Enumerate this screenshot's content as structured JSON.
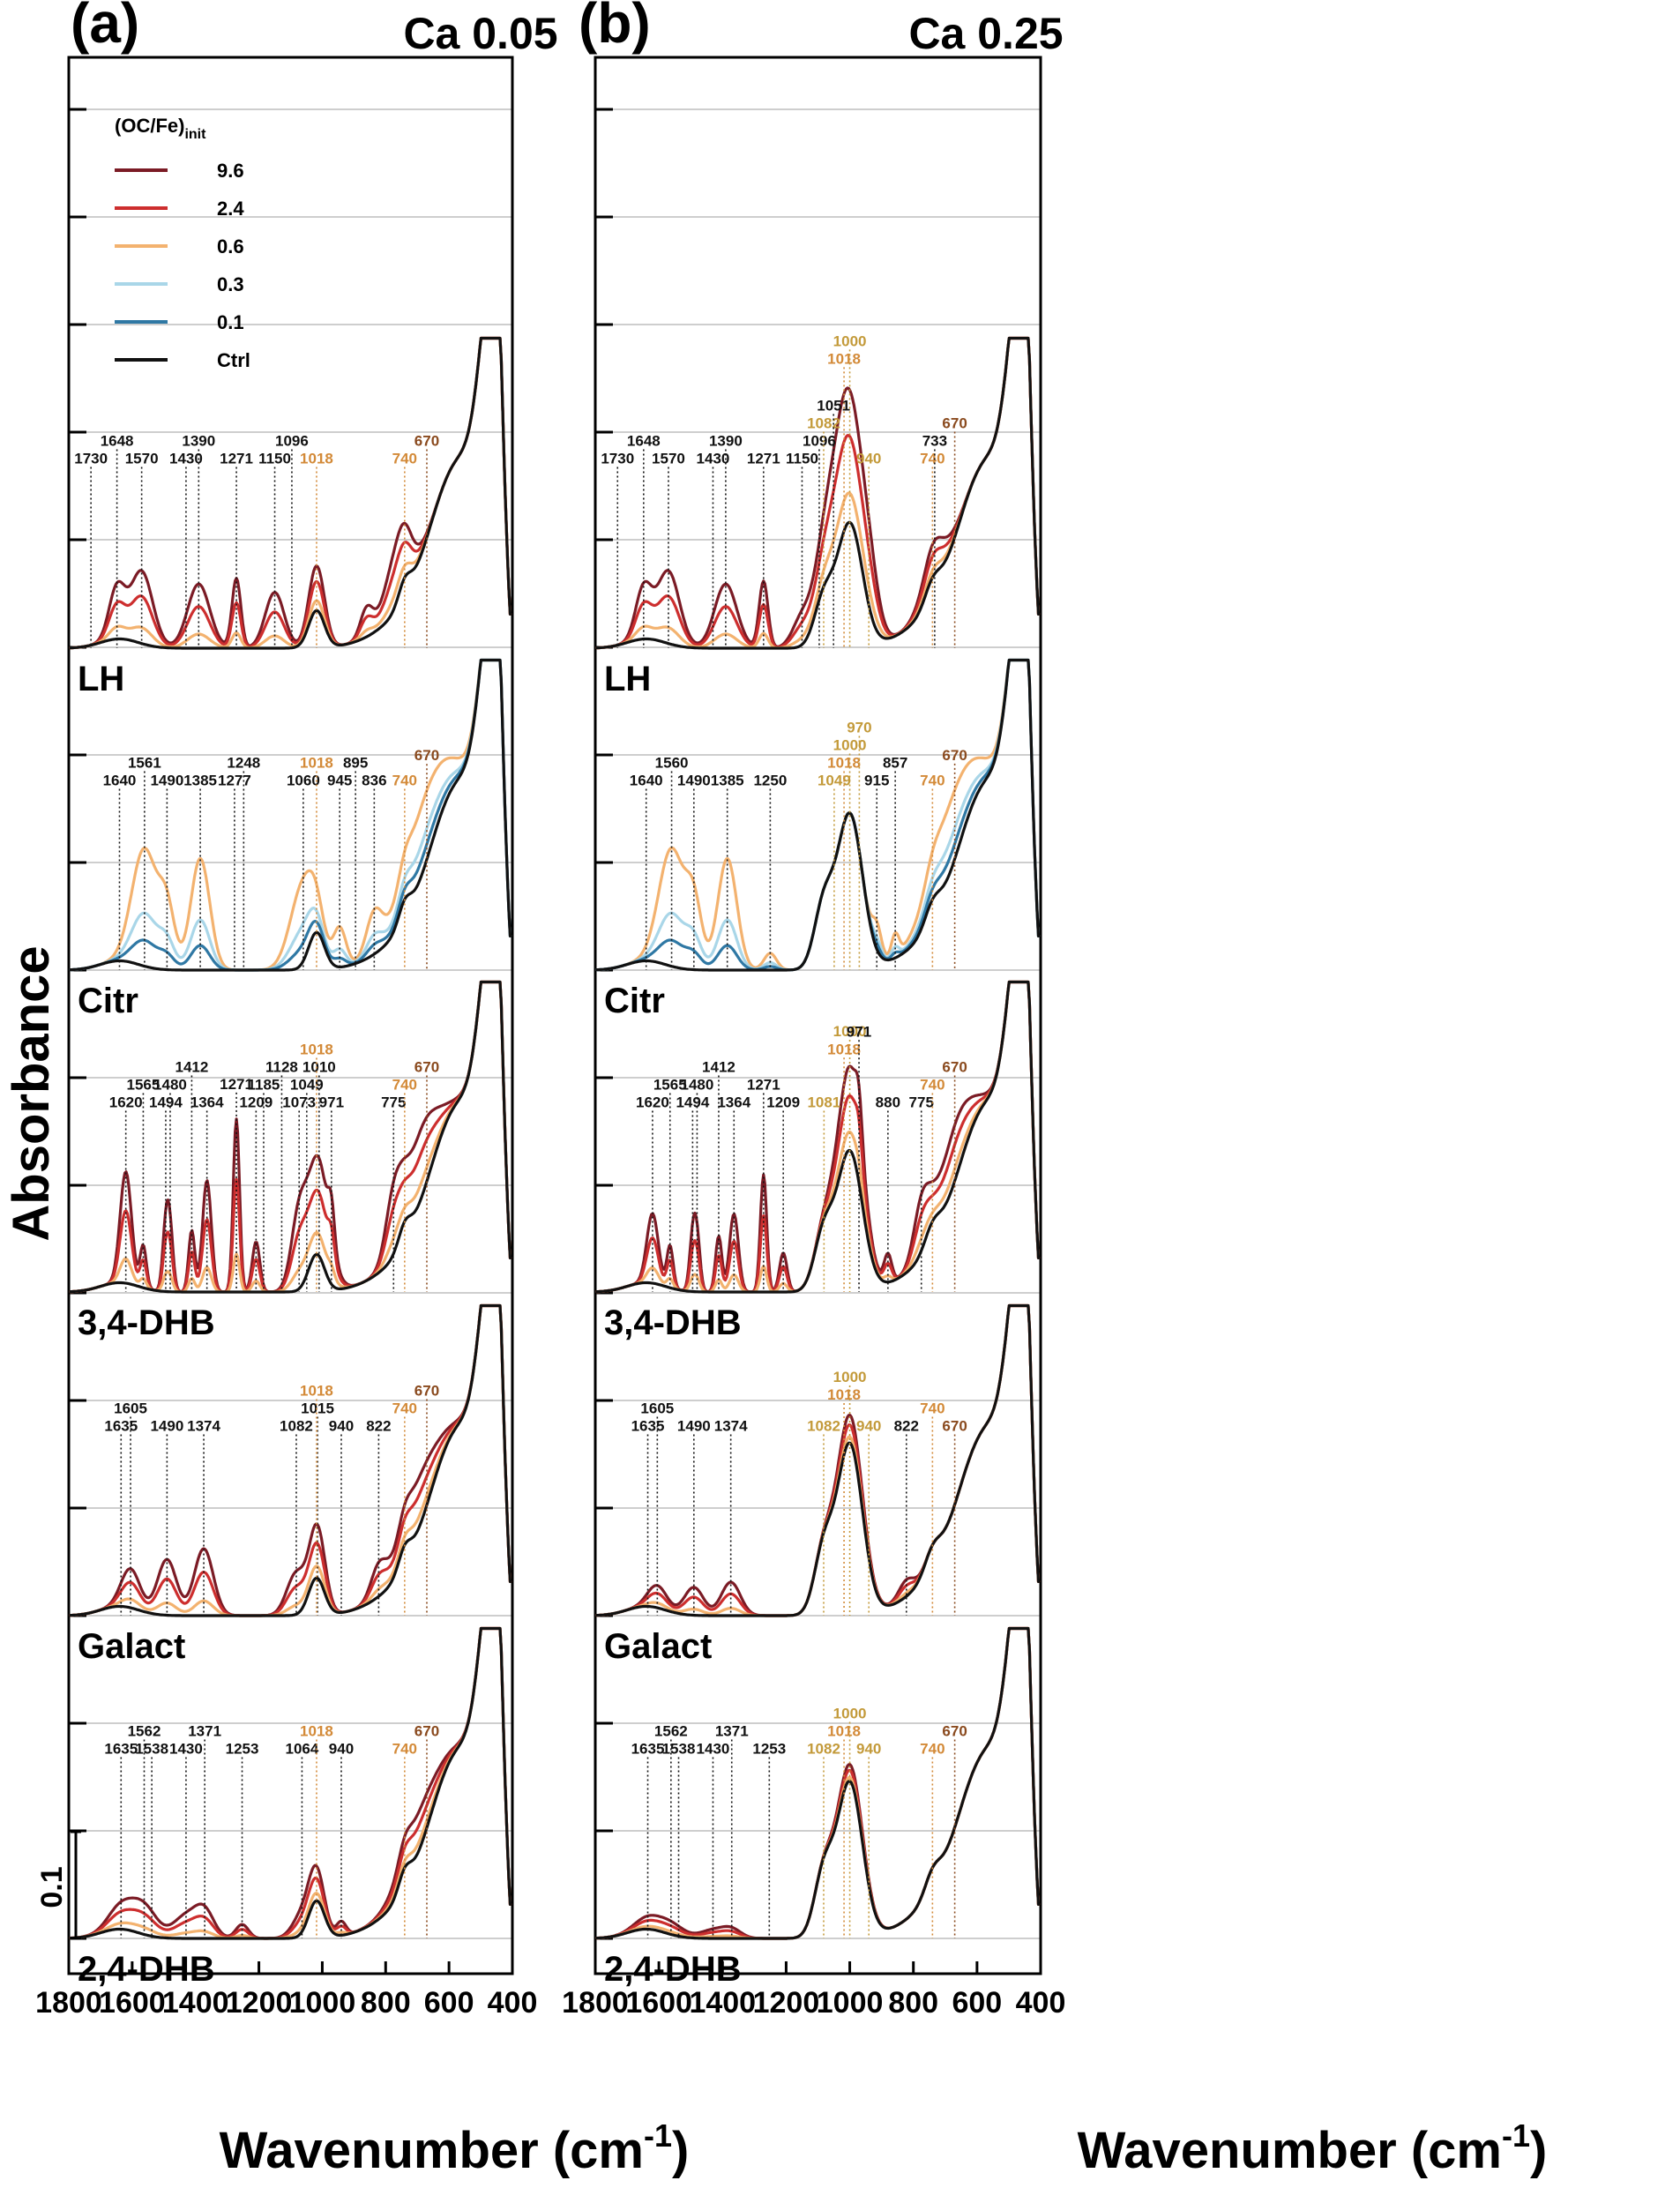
{
  "figure": {
    "y_axis_title": "Absorbance",
    "x_axis_label": "Wavenumber (cm",
    "x_axis_superscript": "-1",
    "x_axis_close": ")",
    "scale_bar_label": "0.1"
  },
  "colors": {
    "9.6": "#7b1b25",
    "2.4": "#cd2e2e",
    "0.6": "#f3b26f",
    "0.3": "#a9d6e8",
    "0.1": "#2f78a4",
    "Ctrl": "#111111",
    "peak_black": "#111111",
    "peak_orange": "#d38a38",
    "peak_gold": "#c39a3a",
    "peak_brown": "#8a4a1e"
  },
  "legend": {
    "title_main": "(OC/Fe)",
    "title_sub": "init",
    "entries": [
      {
        "label": "9.6",
        "key": "9.6"
      },
      {
        "label": "2.4",
        "key": "2.4"
      },
      {
        "label": "0.6",
        "key": "0.6"
      },
      {
        "label": "0.3",
        "key": "0.3"
      },
      {
        "label": "0.1",
        "key": "0.1"
      },
      {
        "label": "Ctrl",
        "key": "Ctrl"
      }
    ]
  },
  "chart_data": [
    {
      "type": "line",
      "panel_letter": "(a)",
      "title": "Ca 0.05",
      "xlabel": "Wavenumber (cm-1)",
      "ylabel": "Absorbance",
      "xlim": [
        1800,
        400
      ],
      "x_reversed": true,
      "x_ticks": [
        1800,
        1600,
        1400,
        1200,
        1000,
        800,
        600,
        400
      ],
      "offset_stacked": true,
      "grid": "horizontal",
      "samples": [
        {
          "name": "LH",
          "series": [
            "9.6",
            "2.4",
            "0.6",
            "Ctrl"
          ],
          "peaks": [
            {
              "x": 1730,
              "label": "1730",
              "c": "black"
            },
            {
              "x": 1648,
              "label": "1648",
              "c": "black"
            },
            {
              "x": 1570,
              "label": "1570",
              "c": "black"
            },
            {
              "x": 1430,
              "label": "1430",
              "c": "black"
            },
            {
              "x": 1390,
              "label": "1390",
              "c": "black"
            },
            {
              "x": 1271,
              "label": "1271",
              "c": "black"
            },
            {
              "x": 1150,
              "label": "1150",
              "c": "black"
            },
            {
              "x": 1096,
              "label": "1096",
              "c": "black"
            },
            {
              "x": 1018,
              "label": "1018",
              "c": "orange"
            },
            {
              "x": 740,
              "label": "740",
              "c": "orange"
            },
            {
              "x": 670,
              "label": "670",
              "c": "brown"
            }
          ]
        },
        {
          "name": "Citr",
          "series": [
            "0.6",
            "0.3",
            "0.1",
            "Ctrl"
          ],
          "peaks": [
            {
              "x": 1640,
              "label": "1640",
              "c": "black"
            },
            {
              "x": 1561,
              "label": "1561",
              "c": "black"
            },
            {
              "x": 1490,
              "label": "1490",
              "c": "black"
            },
            {
              "x": 1385,
              "label": "1385",
              "c": "black"
            },
            {
              "x": 1277,
              "label": "1277",
              "c": "black"
            },
            {
              "x": 1248,
              "label": "1248",
              "c": "black"
            },
            {
              "x": 1060,
              "label": "1060",
              "c": "black"
            },
            {
              "x": 1018,
              "label": "1018",
              "c": "orange"
            },
            {
              "x": 945,
              "label": "945",
              "c": "black"
            },
            {
              "x": 895,
              "label": "895",
              "c": "black"
            },
            {
              "x": 836,
              "label": "836",
              "c": "black"
            },
            {
              "x": 740,
              "label": "740",
              "c": "orange"
            },
            {
              "x": 670,
              "label": "670",
              "c": "brown"
            }
          ]
        },
        {
          "name": "3,4-DHB",
          "series": [
            "9.6",
            "2.4",
            "0.6",
            "Ctrl"
          ],
          "peaks": [
            {
              "x": 1620,
              "label": "1620",
              "c": "black"
            },
            {
              "x": 1565,
              "label": "1565",
              "c": "black"
            },
            {
              "x": 1494,
              "label": "1494",
              "c": "black"
            },
            {
              "x": 1480,
              "label": "1480",
              "c": "black"
            },
            {
              "x": 1412,
              "label": "1412",
              "c": "black"
            },
            {
              "x": 1364,
              "label": "1364",
              "c": "black"
            },
            {
              "x": 1271,
              "label": "1271",
              "c": "black"
            },
            {
              "x": 1209,
              "label": "1209",
              "c": "black"
            },
            {
              "x": 1185,
              "label": "1185",
              "c": "black"
            },
            {
              "x": 1128,
              "label": "1128",
              "c": "black"
            },
            {
              "x": 1073,
              "label": "1073",
              "c": "black"
            },
            {
              "x": 1049,
              "label": "1049",
              "c": "black"
            },
            {
              "x": 1010,
              "label": "1010",
              "c": "black"
            },
            {
              "x": 1018,
              "label": "1018",
              "c": "orange"
            },
            {
              "x": 971,
              "label": "971",
              "c": "black"
            },
            {
              "x": 775,
              "label": "775",
              "c": "black"
            },
            {
              "x": 740,
              "label": "740",
              "c": "orange"
            },
            {
              "x": 670,
              "label": "670",
              "c": "brown"
            }
          ]
        },
        {
          "name": "Galact",
          "series": [
            "9.6",
            "2.4",
            "0.6",
            "Ctrl"
          ],
          "peaks": [
            {
              "x": 1635,
              "label": "1635",
              "c": "black"
            },
            {
              "x": 1605,
              "label": "1605",
              "c": "black"
            },
            {
              "x": 1490,
              "label": "1490",
              "c": "black"
            },
            {
              "x": 1374,
              "label": "1374",
              "c": "black"
            },
            {
              "x": 1082,
              "label": "1082",
              "c": "black"
            },
            {
              "x": 1015,
              "label": "1015",
              "c": "black"
            },
            {
              "x": 1018,
              "label": "1018",
              "c": "orange"
            },
            {
              "x": 940,
              "label": "940",
              "c": "black"
            },
            {
              "x": 822,
              "label": "822",
              "c": "black"
            },
            {
              "x": 740,
              "label": "740",
              "c": "orange"
            },
            {
              "x": 670,
              "label": "670",
              "c": "brown"
            }
          ]
        },
        {
          "name": "2,4-DHB",
          "series": [
            "9.6",
            "2.4",
            "0.6",
            "Ctrl"
          ],
          "peaks": [
            {
              "x": 1635,
              "label": "1635",
              "c": "black"
            },
            {
              "x": 1562,
              "label": "1562",
              "c": "black"
            },
            {
              "x": 1538,
              "label": "1538",
              "c": "black"
            },
            {
              "x": 1430,
              "label": "1430",
              "c": "black"
            },
            {
              "x": 1371,
              "label": "1371",
              "c": "black"
            },
            {
              "x": 1253,
              "label": "1253",
              "c": "black"
            },
            {
              "x": 1064,
              "label": "1064",
              "c": "black"
            },
            {
              "x": 1018,
              "label": "1018",
              "c": "orange"
            },
            {
              "x": 940,
              "label": "940",
              "c": "black"
            },
            {
              "x": 740,
              "label": "740",
              "c": "orange"
            },
            {
              "x": 670,
              "label": "670",
              "c": "brown"
            }
          ]
        }
      ]
    },
    {
      "type": "line",
      "panel_letter": "(b)",
      "title": "Ca 0.25",
      "xlabel": "Wavenumber (cm-1)",
      "ylabel": "Absorbance",
      "xlim": [
        1800,
        400
      ],
      "x_reversed": true,
      "x_ticks": [
        1800,
        1600,
        1400,
        1200,
        1000,
        800,
        600,
        400
      ],
      "offset_stacked": true,
      "grid": "horizontal",
      "samples": [
        {
          "name": "LH",
          "series": [
            "9.6",
            "2.4",
            "0.6",
            "Ctrl"
          ],
          "peaks": [
            {
              "x": 1730,
              "label": "1730",
              "c": "black"
            },
            {
              "x": 1648,
              "label": "1648",
              "c": "black"
            },
            {
              "x": 1570,
              "label": "1570",
              "c": "black"
            },
            {
              "x": 1430,
              "label": "1430",
              "c": "black"
            },
            {
              "x": 1390,
              "label": "1390",
              "c": "black"
            },
            {
              "x": 1271,
              "label": "1271",
              "c": "black"
            },
            {
              "x": 1150,
              "label": "1150",
              "c": "black"
            },
            {
              "x": 1096,
              "label": "1096",
              "c": "black"
            },
            {
              "x": 1082,
              "label": "1082",
              "c": "gold"
            },
            {
              "x": 1051,
              "label": "1051",
              "c": "black"
            },
            {
              "x": 1018,
              "label": "1018",
              "c": "orange"
            },
            {
              "x": 1000,
              "label": "1000",
              "c": "gold"
            },
            {
              "x": 940,
              "label": "940",
              "c": "gold"
            },
            {
              "x": 740,
              "label": "740",
              "c": "orange"
            },
            {
              "x": 733,
              "label": "733",
              "c": "black"
            },
            {
              "x": 670,
              "label": "670",
              "c": "brown"
            }
          ]
        },
        {
          "name": "Citr",
          "series": [
            "0.6",
            "0.3",
            "0.1",
            "Ctrl"
          ],
          "peaks": [
            {
              "x": 1640,
              "label": "1640",
              "c": "black"
            },
            {
              "x": 1560,
              "label": "1560",
              "c": "black"
            },
            {
              "x": 1490,
              "label": "1490",
              "c": "black"
            },
            {
              "x": 1385,
              "label": "1385",
              "c": "black"
            },
            {
              "x": 1250,
              "label": "1250",
              "c": "black"
            },
            {
              "x": 1049,
              "label": "1049",
              "c": "gold"
            },
            {
              "x": 1018,
              "label": "1018",
              "c": "orange"
            },
            {
              "x": 1000,
              "label": "1000",
              "c": "gold"
            },
            {
              "x": 970,
              "label": "970",
              "c": "gold"
            },
            {
              "x": 915,
              "label": "915",
              "c": "black"
            },
            {
              "x": 857,
              "label": "857",
              "c": "black"
            },
            {
              "x": 740,
              "label": "740",
              "c": "orange"
            },
            {
              "x": 670,
              "label": "670",
              "c": "brown"
            }
          ]
        },
        {
          "name": "3,4-DHB",
          "series": [
            "9.6",
            "2.4",
            "0.6",
            "Ctrl"
          ],
          "peaks": [
            {
              "x": 1620,
              "label": "1620",
              "c": "black"
            },
            {
              "x": 1565,
              "label": "1565",
              "c": "black"
            },
            {
              "x": 1494,
              "label": "1494",
              "c": "black"
            },
            {
              "x": 1480,
              "label": "1480",
              "c": "black"
            },
            {
              "x": 1412,
              "label": "1412",
              "c": "black"
            },
            {
              "x": 1364,
              "label": "1364",
              "c": "black"
            },
            {
              "x": 1271,
              "label": "1271",
              "c": "black"
            },
            {
              "x": 1209,
              "label": "1209",
              "c": "black"
            },
            {
              "x": 1081,
              "label": "1081",
              "c": "gold"
            },
            {
              "x": 1000,
              "label": "1000",
              "c": "gold"
            },
            {
              "x": 1018,
              "label": "1018",
              "c": "orange"
            },
            {
              "x": 971,
              "label": "971",
              "c": "black"
            },
            {
              "x": 880,
              "label": "880",
              "c": "black"
            },
            {
              "x": 775,
              "label": "775",
              "c": "black"
            },
            {
              "x": 740,
              "label": "740",
              "c": "orange"
            },
            {
              "x": 670,
              "label": "670",
              "c": "brown"
            }
          ]
        },
        {
          "name": "Galact",
          "series": [
            "9.6",
            "2.4",
            "0.6",
            "Ctrl"
          ],
          "peaks": [
            {
              "x": 1635,
              "label": "1635",
              "c": "black"
            },
            {
              "x": 1605,
              "label": "1605",
              "c": "black"
            },
            {
              "x": 1490,
              "label": "1490",
              "c": "black"
            },
            {
              "x": 1374,
              "label": "1374",
              "c": "black"
            },
            {
              "x": 1082,
              "label": "1082",
              "c": "gold"
            },
            {
              "x": 1018,
              "label": "1018",
              "c": "orange"
            },
            {
              "x": 1000,
              "label": "1000",
              "c": "gold"
            },
            {
              "x": 940,
              "label": "940",
              "c": "gold"
            },
            {
              "x": 822,
              "label": "822",
              "c": "black"
            },
            {
              "x": 740,
              "label": "740",
              "c": "orange"
            },
            {
              "x": 670,
              "label": "670",
              "c": "brown"
            }
          ]
        },
        {
          "name": "2,4-DHB",
          "series": [
            "9.6",
            "2.4",
            "0.6",
            "Ctrl"
          ],
          "peaks": [
            {
              "x": 1635,
              "label": "1635",
              "c": "black"
            },
            {
              "x": 1562,
              "label": "1562",
              "c": "black"
            },
            {
              "x": 1538,
              "label": "1538",
              "c": "black"
            },
            {
              "x": 1430,
              "label": "1430",
              "c": "black"
            },
            {
              "x": 1371,
              "label": "1371",
              "c": "black"
            },
            {
              "x": 1253,
              "label": "1253",
              "c": "black"
            },
            {
              "x": 1082,
              "label": "1082",
              "c": "gold"
            },
            {
              "x": 1018,
              "label": "1018",
              "c": "orange"
            },
            {
              "x": 1000,
              "label": "1000",
              "c": "gold"
            },
            {
              "x": 940,
              "label": "940",
              "c": "gold"
            },
            {
              "x": 740,
              "label": "740",
              "c": "orange"
            },
            {
              "x": 670,
              "label": "670",
              "c": "brown"
            }
          ]
        }
      ]
    }
  ]
}
